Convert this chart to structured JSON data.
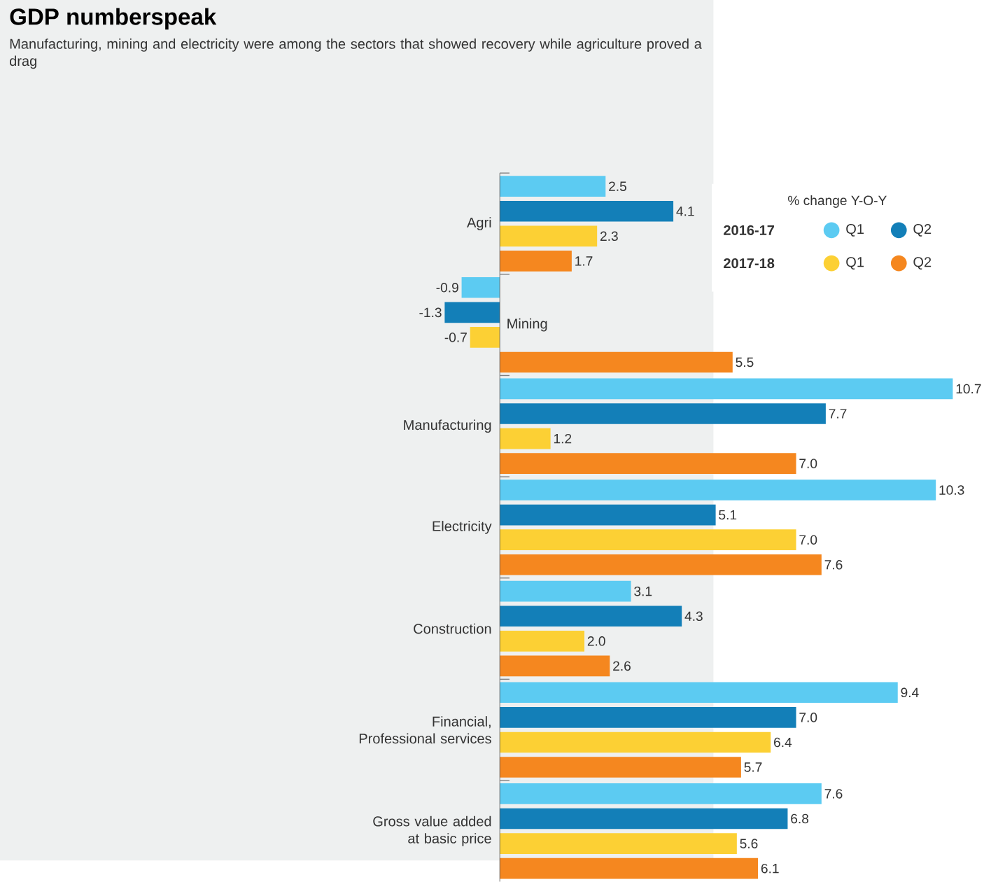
{
  "chart_data": {
    "type": "bar",
    "orientation": "horizontal",
    "title": "GDP numberspeak",
    "subtitle": "Manufacturing, mining and electricity were among the sectors that showed recovery while agriculture proved a drag",
    "legend_title": "% change Y-O-Y",
    "annotations": [
      "2016-17",
      "2017-18"
    ],
    "categories": [
      "Agri",
      "Mining",
      "Manufacturing",
      "Electricity",
      "Construction",
      "Financial, Professional services",
      "Gross value added at basic price"
    ],
    "tick_labels": "y",
    "legend": "top right",
    "series": [
      {
        "name": "Q1",
        "color": "#5ccbf2",
        "values": [
          2.5,
          -0.9,
          10.7,
          10.3,
          3.1,
          9.4,
          7.6
        ],
        "value_labels": [
          "2.5",
          "-0.9",
          "10.7",
          "10.3",
          "3.1",
          "9.4",
          "7.6"
        ]
      },
      {
        "name": "Q2",
        "color": "#137fb8",
        "values": [
          4.1,
          -1.3,
          7.7,
          5.1,
          4.3,
          7.0,
          6.8
        ],
        "value_labels": [
          "4.1",
          "-1.3",
          "7.7",
          "5.1",
          "4.3",
          "7.0",
          "6.8"
        ]
      },
      {
        "name": "Q1",
        "color": "#fcd034",
        "values": [
          2.3,
          -0.7,
          1.2,
          7.0,
          2.0,
          6.4,
          5.6
        ],
        "value_labels": [
          "2.3",
          "-0.7",
          "1.2",
          "7.0",
          "2.0",
          "6.4",
          "5.6"
        ]
      },
      {
        "name": "Q2",
        "color": "#f5871f",
        "values": [
          1.7,
          5.5,
          7.0,
          7.6,
          2.6,
          5.7,
          6.1
        ],
        "value_labels": [
          "1.7",
          "5.5",
          "7.0",
          "7.6",
          "2.6",
          "5.7",
          "6.1"
        ]
      }
    ]
  }
}
